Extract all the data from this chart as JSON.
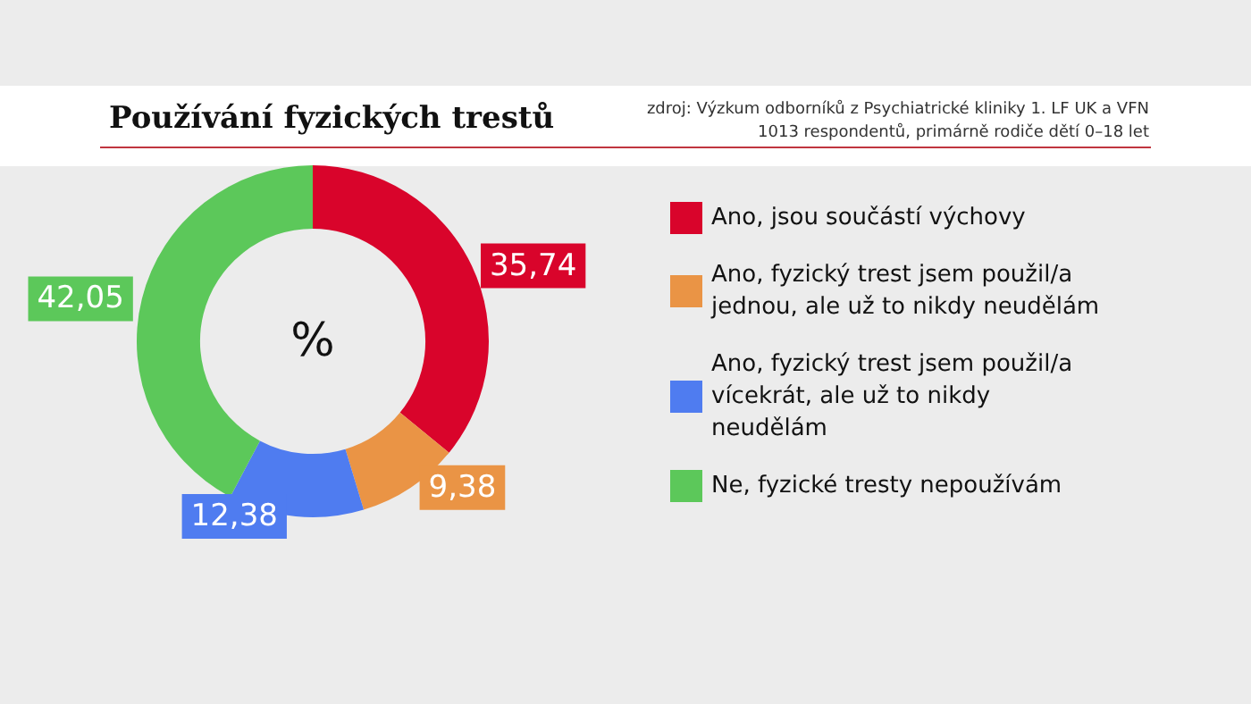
{
  "chart_data": {
    "type": "donut",
    "title": "Používání fyzických trestů",
    "annotations": [
      "zdroj: Výzkum odborníků z Psychiatrické kliniky 1. LF UK a VFN",
      "1013 respondentů, primárně rodiče dětí 0–18 let",
      "%"
    ],
    "categories": [
      "Ano, jsou součástí výchovy",
      "Ano, fyzický trest jsem použil/a jednou, ale už to nikdy neudělám",
      "Ano, fyzický trest jsem použil/a vícekrát, ale už to nikdy neudělám",
      "Ne, fyzické tresty nepoužívám"
    ],
    "values": [
      35.74,
      9.38,
      12.38,
      42.05
    ],
    "value_labels": [
      "35,74",
      "9,38",
      "12,38",
      "42,05"
    ],
    "colors": [
      "#d9042b",
      "#ea9445",
      "#4f7cf0",
      "#5cc85a"
    ],
    "legend": "right"
  }
}
